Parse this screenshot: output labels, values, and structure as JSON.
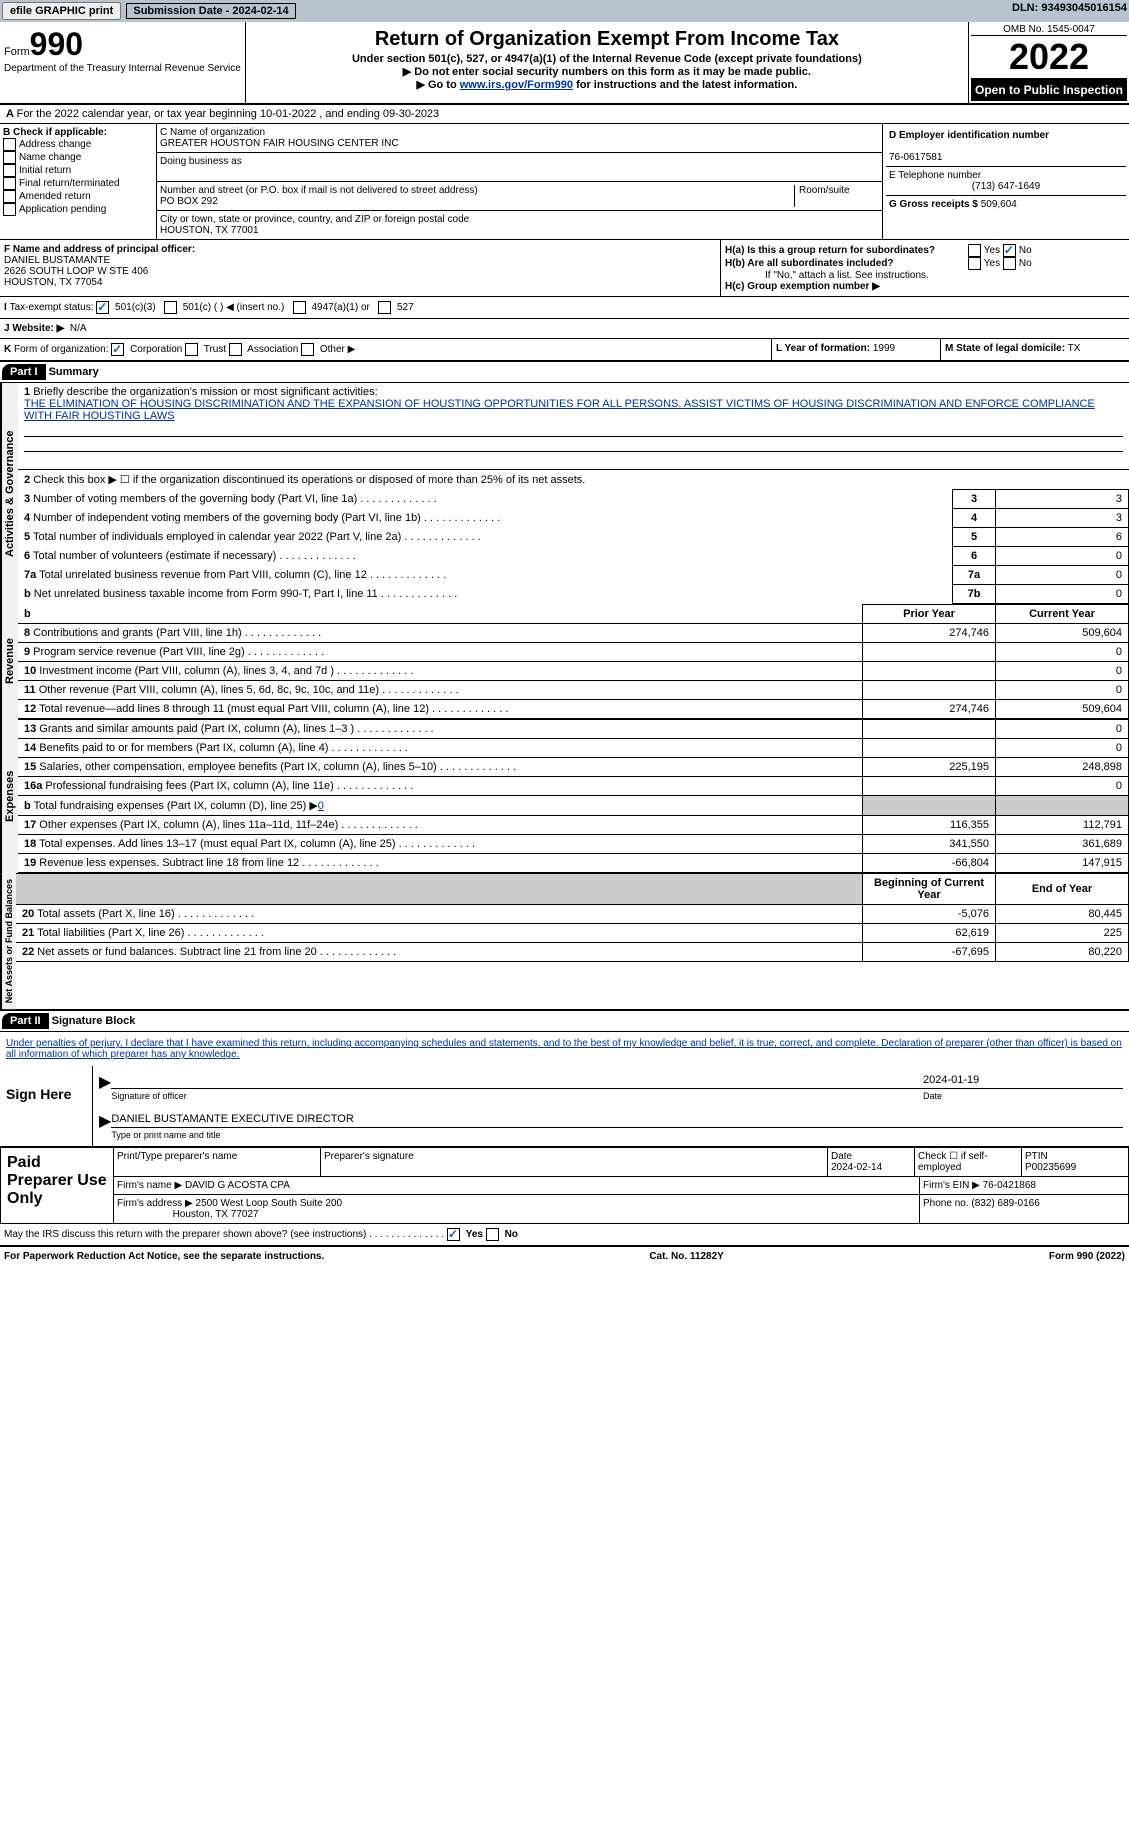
{
  "topbar": {
    "efile": "efile GRAPHIC print",
    "submission": "Submission Date - 2024-02-14",
    "dln": "DLN: 93493045016154"
  },
  "header": {
    "form": "Form",
    "num": "990",
    "dept": "Department of the Treasury Internal Revenue Service",
    "title": "Return of Organization Exempt From Income Tax",
    "sub1": "Under section 501(c), 527, or 4947(a)(1) of the Internal Revenue Code (except private foundations)",
    "sub2": "▶ Do not enter social security numbers on this form as it may be made public.",
    "sub3_pre": "▶ Go to ",
    "sub3_link": "www.irs.gov/Form990",
    "sub3_post": " for instructions and the latest information.",
    "omb": "OMB No. 1545-0047",
    "year": "2022",
    "inspect": "Open to Public Inspection"
  },
  "rowA": {
    "text": "For the 2022 calendar year, or tax year beginning 10-01-2022    , and ending 09-30-2023"
  },
  "B": {
    "label": "B Check if applicable:",
    "opts": [
      "Address change",
      "Name change",
      "Initial return",
      "Final return/terminated",
      "Amended return",
      "Application pending"
    ]
  },
  "C": {
    "name_label": "C Name of organization",
    "name": "GREATER HOUSTON FAIR HOUSING CENTER INC",
    "dba": "Doing business as",
    "addr_label": "Number and street (or P.O. box if mail is not delivered to street address)",
    "room": "Room/suite",
    "addr": "PO BOX 292",
    "city_label": "City or town, state or province, country, and ZIP or foreign postal code",
    "city": "HOUSTON, TX  77001"
  },
  "D": {
    "label": "D Employer identification number",
    "val": "76-0617581"
  },
  "E": {
    "label": "E Telephone number",
    "val": "(713) 647-1649"
  },
  "G": {
    "label": "G Gross receipts $",
    "val": "509,604"
  },
  "F": {
    "label": "F  Name and address of principal officer:",
    "name": "DANIEL BUSTAMANTE",
    "addr1": "2626 SOUTH LOOP W STE 406",
    "addr2": "HOUSTON, TX  77054"
  },
  "H": {
    "a": "H(a)  Is this a group return for subordinates?",
    "b": "H(b)  Are all subordinates included?",
    "b_note": "If \"No,\" attach a list. See instructions.",
    "c": "H(c)  Group exemption number ▶",
    "yes": "Yes",
    "no": "No"
  },
  "I": {
    "label": "Tax-exempt status:",
    "opts": [
      "501(c)(3)",
      "501(c) (  ) ◀ (insert no.)",
      "4947(a)(1) or",
      "527"
    ]
  },
  "J": {
    "label": "Website: ▶",
    "val": "N/A"
  },
  "K": {
    "label": "Form of organization:",
    "opts": [
      "Corporation",
      "Trust",
      "Association",
      "Other ▶"
    ]
  },
  "L": {
    "label": "L Year of formation:",
    "val": "1999"
  },
  "M": {
    "label": "M State of legal domicile:",
    "val": "TX"
  },
  "part1": {
    "label": "Part I",
    "title": "Summary"
  },
  "summary": {
    "vtab1": "Activities & Governance",
    "vtab2": "Revenue",
    "vtab3": "Expenses",
    "vtab4": "Net Assets or Fund Balances",
    "line1": "Briefly describe the organization's mission or most significant activities:",
    "mission": "THE ELIMINATION OF HOUSING DISCRIMINATION AND THE EXPANSION OF HOUSTING OPPORTUNITIES FOR ALL PERSONS. ASSIST VICTIMS OF HOUSING DISCRIMINATION AND ENFORCE COMPLIANCE WITH FAIR HOUSTING LAWS",
    "line2": "Check this box ▶ ☐  if the organization discontinued its operations or disposed of more than 25% of its net assets.",
    "rows": [
      {
        "n": "3",
        "t": "Number of voting members of the governing body (Part VI, line 1a)",
        "b": "3",
        "v": "3"
      },
      {
        "n": "4",
        "t": "Number of independent voting members of the governing body (Part VI, line 1b)",
        "b": "4",
        "v": "3"
      },
      {
        "n": "5",
        "t": "Total number of individuals employed in calendar year 2022 (Part V, line 2a)",
        "b": "5",
        "v": "6"
      },
      {
        "n": "6",
        "t": "Total number of volunteers (estimate if necessary)",
        "b": "6",
        "v": "0"
      },
      {
        "n": "7a",
        "t": "Total unrelated business revenue from Part VIII, column (C), line 12",
        "b": "7a",
        "v": "0"
      },
      {
        "n": "b",
        "t": "Net unrelated business taxable income from Form 990-T, Part I, line 11",
        "b": "7b",
        "v": "0"
      }
    ],
    "prior": "Prior Year",
    "current": "Current Year",
    "rev": [
      {
        "n": "8",
        "t": "Contributions and grants (Part VIII, line 1h)",
        "p": "274,746",
        "c": "509,604"
      },
      {
        "n": "9",
        "t": "Program service revenue (Part VIII, line 2g)",
        "p": "",
        "c": "0"
      },
      {
        "n": "10",
        "t": "Investment income (Part VIII, column (A), lines 3, 4, and 7d )",
        "p": "",
        "c": "0"
      },
      {
        "n": "11",
        "t": "Other revenue (Part VIII, column (A), lines 5, 6d, 8c, 9c, 10c, and 11e)",
        "p": "",
        "c": "0"
      },
      {
        "n": "12",
        "t": "Total revenue—add lines 8 through 11 (must equal Part VIII, column (A), line 12)",
        "p": "274,746",
        "c": "509,604"
      }
    ],
    "exp": [
      {
        "n": "13",
        "t": "Grants and similar amounts paid (Part IX, column (A), lines 1–3 )",
        "p": "",
        "c": "0"
      },
      {
        "n": "14",
        "t": "Benefits paid to or for members (Part IX, column (A), line 4)",
        "p": "",
        "c": "0"
      },
      {
        "n": "15",
        "t": "Salaries, other compensation, employee benefits (Part IX, column (A), lines 5–10)",
        "p": "225,195",
        "c": "248,898"
      },
      {
        "n": "16a",
        "t": "Professional fundraising fees (Part IX, column (A), line 11e)",
        "p": "",
        "c": "0"
      },
      {
        "n": "b",
        "t": "Total fundraising expenses (Part IX, column (D), line 25) ▶",
        "p": "shade",
        "c": "shade",
        "extra": "0"
      },
      {
        "n": "17",
        "t": "Other expenses (Part IX, column (A), lines 11a–11d, 11f–24e)",
        "p": "116,355",
        "c": "112,791"
      },
      {
        "n": "18",
        "t": "Total expenses. Add lines 13–17 (must equal Part IX, column (A), line 25)",
        "p": "341,550",
        "c": "361,689"
      },
      {
        "n": "19",
        "t": "Revenue less expenses. Subtract line 18 from line 12",
        "p": "-66,804",
        "c": "147,915"
      }
    ],
    "boy": "Beginning of Current Year",
    "eoy": "End of Year",
    "net": [
      {
        "n": "20",
        "t": "Total assets (Part X, line 16)",
        "p": "-5,076",
        "c": "80,445"
      },
      {
        "n": "21",
        "t": "Total liabilities (Part X, line 26)",
        "p": "62,619",
        "c": "225"
      },
      {
        "n": "22",
        "t": "Net assets or fund balances. Subtract line 21 from line 20",
        "p": "-67,695",
        "c": "80,220"
      }
    ]
  },
  "part2": {
    "label": "Part II",
    "title": "Signature Block",
    "decl": "Under penalties of perjury, I declare that I have examined this return, including accompanying schedules and statements, and to the best of my knowledge and belief, it is true, correct, and complete. Declaration of preparer (other than officer) is based on all information of which preparer has any knowledge."
  },
  "sign": {
    "here": "Sign Here",
    "sig": "Signature of officer",
    "date": "Date",
    "date_val": "2024-01-19",
    "name": "DANIEL BUSTAMANTE  EXECUTIVE DIRECTOR",
    "name_label": "Type or print name and title"
  },
  "paid": {
    "label": "Paid Preparer Use Only",
    "h1": "Print/Type preparer's name",
    "h2": "Preparer's signature",
    "h3": "Date",
    "h3v": "2024-02-14",
    "h4": "Check ☐ if self-employed",
    "h5": "PTIN",
    "h5v": "P00235699",
    "firm": "Firm's name     ▶",
    "firm_v": "DAVID G ACOSTA CPA",
    "ein": "Firm's EIN ▶",
    "ein_v": "76-0421868",
    "addr": "Firm's address ▶",
    "addr_v": "2500 West Loop South Suite 200",
    "addr_v2": "Houston, TX  77027",
    "phone": "Phone no.",
    "phone_v": "(832) 689-0166"
  },
  "may": "May the IRS discuss this return with the preparer shown above? (see instructions)",
  "footer": {
    "l": "For Paperwork Reduction Act Notice, see the separate instructions.",
    "c": "Cat. No. 11282Y",
    "r": "Form 990 (2022)"
  }
}
